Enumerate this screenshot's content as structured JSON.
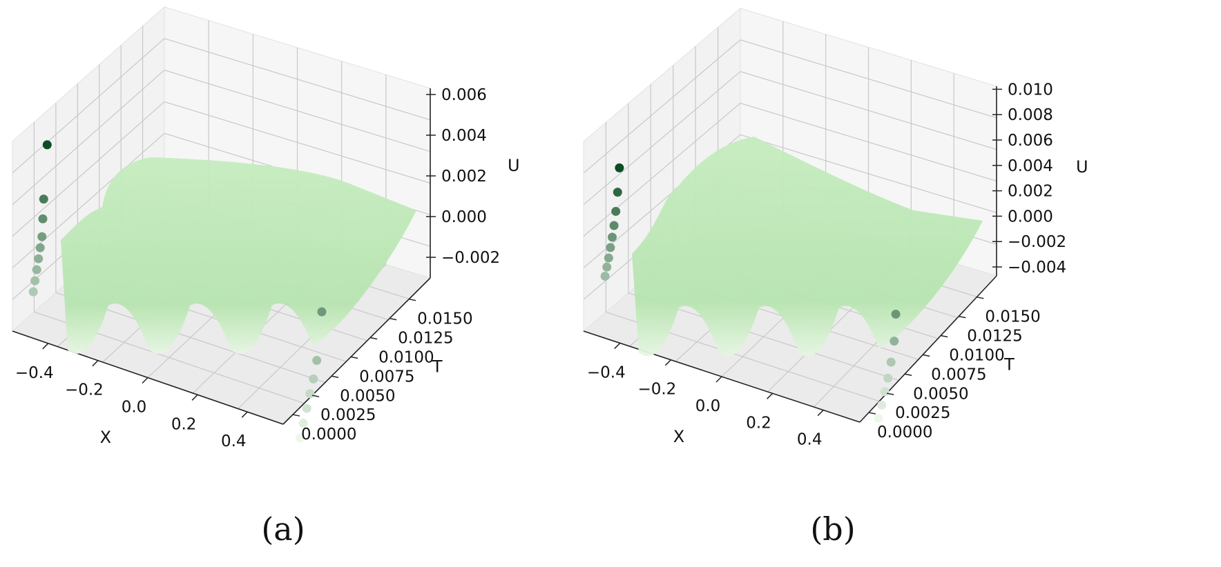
{
  "chart_data": [
    {
      "type": "surface3d",
      "panel_label": "(a)",
      "xlabel": "X",
      "ylabel": "T",
      "zlabel": "U",
      "xlim": [
        -0.5,
        0.5
      ],
      "ylim": [
        0.0,
        0.0175
      ],
      "zlim": [
        -0.003,
        0.007
      ],
      "x_ticks": [
        "−0.4",
        "−0.2",
        "0.0",
        "0.2",
        "0.4"
      ],
      "y_ticks": [
        "0.0000",
        "0.0025",
        "0.0050",
        "0.0075",
        "0.0100",
        "0.0125",
        "0.0150"
      ],
      "z_ticks": [
        "−0.002",
        "0.000",
        "0.002",
        "0.004",
        "0.006"
      ],
      "surface_color": "#b7e4b0",
      "point_color_range": [
        "#eef8ea",
        "#0b4d24"
      ],
      "boundary_points": [
        {
          "x": -0.5,
          "t": 0.004,
          "u": 0.0052
        },
        {
          "x": -0.5,
          "t": 0.0036,
          "u": 0.0025
        },
        {
          "x": -0.5,
          "t": 0.0035,
          "u": 0.0015
        },
        {
          "x": -0.5,
          "t": 0.0034,
          "u": 0.0006
        },
        {
          "x": -0.5,
          "t": 0.0032,
          "u": 0.0001
        },
        {
          "x": -0.5,
          "t": 0.003,
          "u": -0.0004
        },
        {
          "x": -0.5,
          "t": 0.0028,
          "u": -0.0009
        },
        {
          "x": -0.5,
          "t": 0.0026,
          "u": -0.0014
        },
        {
          "x": -0.5,
          "t": 0.0024,
          "u": -0.0019
        },
        {
          "x": 0.5,
          "t": 0.0046,
          "u": 0.0009
        },
        {
          "x": 0.5,
          "t": 0.004,
          "u": -0.0014
        },
        {
          "x": 0.5,
          "t": 0.0036,
          "u": -0.0022
        },
        {
          "x": 0.5,
          "t": 0.0032,
          "u": -0.0028
        },
        {
          "x": 0.5,
          "t": 0.0028,
          "u": -0.0034
        },
        {
          "x": 0.5,
          "t": 0.0024,
          "u": -0.004
        },
        {
          "x": 0.5,
          "t": 0.002,
          "u": -0.0046
        }
      ]
    },
    {
      "type": "surface3d",
      "panel_label": "(b)",
      "xlabel": "X",
      "ylabel": "T",
      "zlabel": "U",
      "xlim": [
        -0.5,
        0.5
      ],
      "ylim": [
        0.0,
        0.0175
      ],
      "zlim": [
        -0.0045,
        0.0105
      ],
      "x_ticks": [
        "−0.4",
        "−0.2",
        "0.0",
        "0.2",
        "0.4"
      ],
      "y_ticks": [
        "0.0000",
        "0.0025",
        "0.0050",
        "0.0075",
        "0.0100",
        "0.0125",
        "0.0150"
      ],
      "z_ticks": [
        "−0.004",
        "−0.002",
        "0.000",
        "0.002",
        "0.004",
        "0.006",
        "0.008",
        "0.010"
      ],
      "surface_color": "#b7e4b0",
      "point_color_range": [
        "#eef8ea",
        "#0b4d24"
      ],
      "boundary_points": [
        {
          "x": -0.5,
          "t": 0.004,
          "u": 0.006
        },
        {
          "x": -0.5,
          "t": 0.0038,
          "u": 0.0042
        },
        {
          "x": -0.5,
          "t": 0.0036,
          "u": 0.0028
        },
        {
          "x": -0.5,
          "t": 0.0034,
          "u": 0.0018
        },
        {
          "x": -0.5,
          "t": 0.0032,
          "u": 0.001
        },
        {
          "x": -0.5,
          "t": 0.003,
          "u": 0.0003
        },
        {
          "x": -0.5,
          "t": 0.0028,
          "u": -0.0004
        },
        {
          "x": -0.5,
          "t": 0.0026,
          "u": -0.001
        },
        {
          "x": -0.5,
          "t": 0.0024,
          "u": -0.0016
        },
        {
          "x": 0.5,
          "t": 0.0046,
          "u": 0.001
        },
        {
          "x": 0.5,
          "t": 0.0044,
          "u": -0.001
        },
        {
          "x": 0.5,
          "t": 0.004,
          "u": -0.0024
        },
        {
          "x": 0.5,
          "t": 0.0036,
          "u": -0.0034
        },
        {
          "x": 0.5,
          "t": 0.0032,
          "u": -0.0042
        },
        {
          "x": 0.5,
          "t": 0.0028,
          "u": -0.005
        },
        {
          "x": 0.5,
          "t": 0.0024,
          "u": -0.0058
        }
      ]
    }
  ]
}
